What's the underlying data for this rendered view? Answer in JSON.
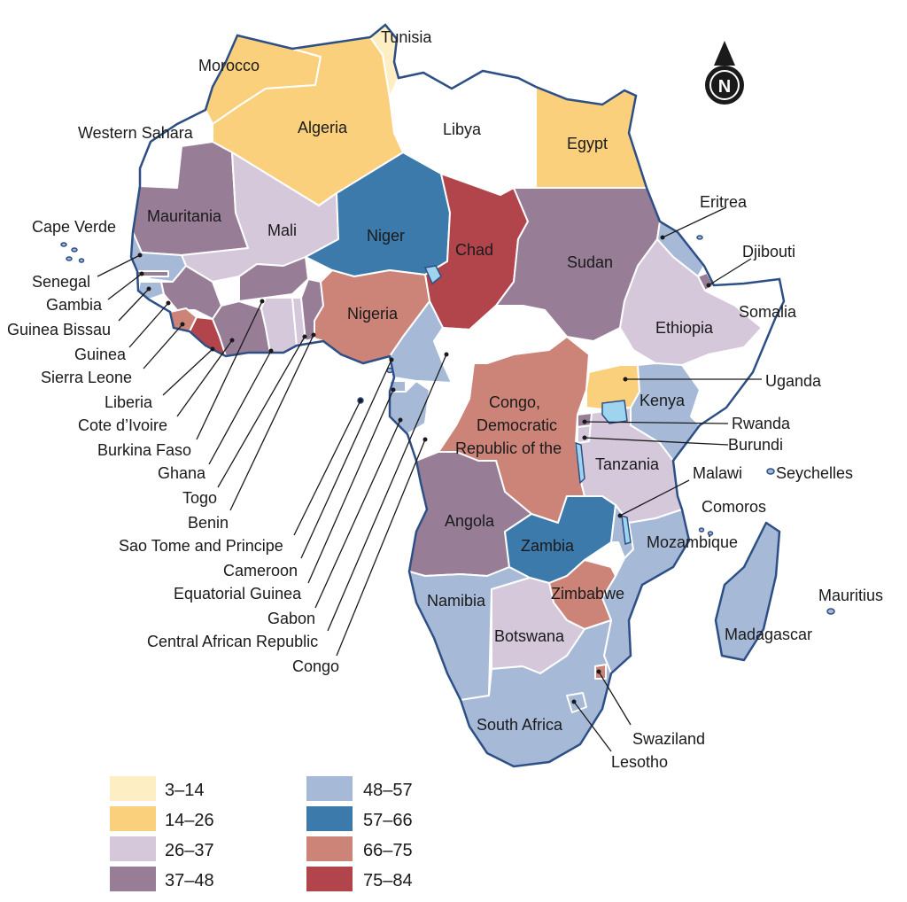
{
  "legend": {
    "bins": [
      {
        "label": "3–14",
        "color": "#fdeec3"
      },
      {
        "label": "14–26",
        "color": "#fbd07c"
      },
      {
        "label": "26–37",
        "color": "#d5c8da"
      },
      {
        "label": "37–48",
        "color": "#977d96"
      },
      {
        "label": "48–57",
        "color": "#a6bad8"
      },
      {
        "label": "57–66",
        "color": "#3c7aab"
      },
      {
        "label": "66–75",
        "color": "#cc8479"
      },
      {
        "label": "75–84",
        "color": "#b1454b"
      }
    ]
  },
  "compass": {
    "letter": "N",
    "icon": "north-arrow-icon"
  },
  "countries": [
    {
      "name": "Tunisia",
      "bin": "3–14"
    },
    {
      "name": "Morocco",
      "bin": "14–26"
    },
    {
      "name": "Algeria",
      "bin": "14–26"
    },
    {
      "name": "Egypt",
      "bin": "14–26"
    },
    {
      "name": "Libya",
      "bin": "no data"
    },
    {
      "name": "Western Sahara",
      "bin": "no data"
    },
    {
      "name": "Mauritania",
      "bin": "37–48"
    },
    {
      "name": "Mali",
      "bin": "26–37"
    },
    {
      "name": "Niger",
      "bin": "57–66"
    },
    {
      "name": "Chad",
      "bin": "75–84"
    },
    {
      "name": "Sudan",
      "bin": "37–48"
    },
    {
      "name": "Eritrea",
      "bin": "48–57"
    },
    {
      "name": "Djibouti",
      "bin": "37–48"
    },
    {
      "name": "Somalia",
      "bin": "no data"
    },
    {
      "name": "Ethiopia",
      "bin": "26–37"
    },
    {
      "name": "Nigeria",
      "bin": "66–75"
    },
    {
      "name": "Cape Verde",
      "bin": "48–57"
    },
    {
      "name": "Senegal",
      "bin": "48–57"
    },
    {
      "name": "Gambia",
      "bin": "37–48"
    },
    {
      "name": "Guinea Bissau",
      "bin": "48–57"
    },
    {
      "name": "Guinea",
      "bin": "37–48"
    },
    {
      "name": "Sierra Leone",
      "bin": "66–75"
    },
    {
      "name": "Liberia",
      "bin": "75–84"
    },
    {
      "name": "Cote d’Ivoire",
      "bin": "37–48"
    },
    {
      "name": "Burkina Faso",
      "bin": "26–37"
    },
    {
      "name": "Ghana",
      "bin": "37–48"
    },
    {
      "name": "Togo",
      "bin": "26–37"
    },
    {
      "name": "Benin",
      "bin": "37–48"
    },
    {
      "name": "Sao Tome and Principe",
      "bin": "48–57"
    },
    {
      "name": "Cameroon",
      "bin": "48–57"
    },
    {
      "name": "Equatorial Guinea",
      "bin": "48–57"
    },
    {
      "name": "Gabon",
      "bin": "48–57"
    },
    {
      "name": "Central African Republic",
      "bin": "no data"
    },
    {
      "name": "Congo",
      "bin": "no data"
    },
    {
      "name": "Congo, Democratic Republic of the",
      "bin": "66–75"
    },
    {
      "name": "Uganda",
      "bin": "14–26"
    },
    {
      "name": "Kenya",
      "bin": "48–57"
    },
    {
      "name": "Rwanda",
      "bin": "37–48"
    },
    {
      "name": "Burundi",
      "bin": "26–37"
    },
    {
      "name": "Tanzania",
      "bin": "26–37"
    },
    {
      "name": "Seychelles",
      "bin": "48–57"
    },
    {
      "name": "Malawi",
      "bin": "48–57"
    },
    {
      "name": "Comoros",
      "bin": "48–57"
    },
    {
      "name": "Angola",
      "bin": "37–48"
    },
    {
      "name": "Zambia",
      "bin": "57–66"
    },
    {
      "name": "Mozambique",
      "bin": "48–57"
    },
    {
      "name": "Zimbabwe",
      "bin": "66–75"
    },
    {
      "name": "Mauritius",
      "bin": "48–57"
    },
    {
      "name": "Namibia",
      "bin": "48–57"
    },
    {
      "name": "Botswana",
      "bin": "26–37"
    },
    {
      "name": "Madagascar",
      "bin": "48–57"
    },
    {
      "name": "South Africa",
      "bin": "48–57"
    },
    {
      "name": "Swaziland",
      "bin": "66–75"
    },
    {
      "name": "Lesotho",
      "bin": "48–57"
    }
  ],
  "labels": {
    "tunisia": "Tunisia",
    "morocco": "Morocco",
    "western_sahara": "Western Sahara",
    "algeria": "Algeria",
    "libya": "Libya",
    "egypt": "Egypt",
    "mauritania": "Mauritania",
    "mali": "Mali",
    "niger": "Niger",
    "chad": "Chad",
    "sudan": "Sudan",
    "eritrea": "Eritrea",
    "djibouti": "Djibouti",
    "somalia": "Somalia",
    "ethiopia": "Ethiopia",
    "nigeria": "Nigeria",
    "cape_verde": "Cape Verde",
    "senegal": "Senegal",
    "gambia": "Gambia",
    "guinea_bissau": "Guinea Bissau",
    "guinea": "Guinea",
    "sierra_leone": "Sierra Leone",
    "liberia": "Liberia",
    "cote_divoire": "Cote d’Ivoire",
    "burkina_faso": "Burkina Faso",
    "ghana": "Ghana",
    "togo": "Togo",
    "benin": "Benin",
    "sao_tome": "Sao Tome and Principe",
    "cameroon": "Cameroon",
    "equatorial_guinea": "Equatorial Guinea",
    "gabon": "Gabon",
    "car": "Central African Republic",
    "congo": "Congo",
    "drc_line1": "Congo,",
    "drc_line2": "Democratic",
    "drc_line3": "Republic of the",
    "uganda": "Uganda",
    "kenya": "Kenya",
    "rwanda": "Rwanda",
    "burundi": "Burundi",
    "tanzania": "Tanzania",
    "seychelles": "Seychelles",
    "malawi": "Malawi",
    "comoros": "Comoros",
    "angola": "Angola",
    "zambia": "Zambia",
    "mozambique": "Mozambique",
    "zimbabwe": "Zimbabwe",
    "mauritius": "Mauritius",
    "namibia": "Namibia",
    "botswana": "Botswana",
    "madagascar": "Madagascar",
    "south_africa": "South Africa",
    "swaziland": "Swaziland",
    "lesotho": "Lesotho"
  }
}
